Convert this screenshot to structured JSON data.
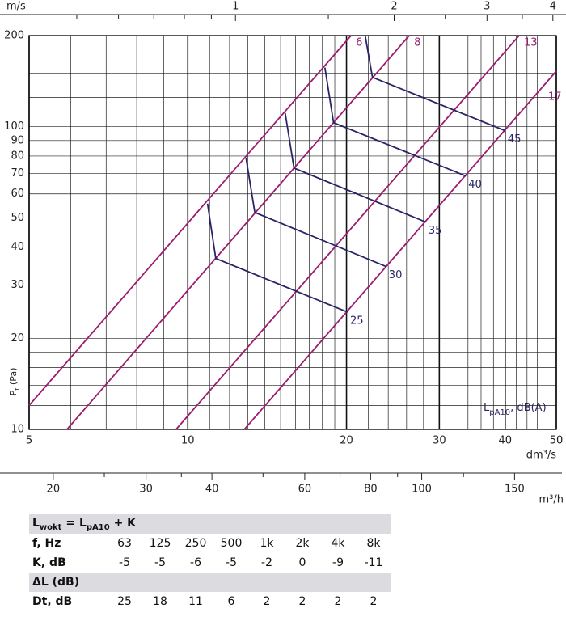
{
  "chart_data": {
    "type": "line",
    "log_x": true,
    "log_y": true,
    "grid": true,
    "x_label": "dm³/s",
    "y_label": {
      "main": "P",
      "sub": "t",
      "rest": " (Pa)"
    },
    "xlim": [
      5,
      50
    ],
    "xticks": [
      5,
      10,
      20,
      30,
      40,
      50
    ],
    "xminor": [
      6,
      7,
      8,
      9,
      11,
      12,
      13,
      14,
      15,
      16,
      17,
      18,
      19,
      22,
      24,
      26,
      28,
      32,
      34,
      36,
      38,
      42,
      44,
      46,
      48
    ],
    "ylim": [
      10,
      200
    ],
    "yticks": [
      10,
      20,
      30,
      40,
      50,
      60,
      70,
      80,
      90,
      100,
      200
    ],
    "yminor": [
      12,
      14,
      16,
      18,
      125,
      150,
      175
    ],
    "top_axis": {
      "label": "m/s",
      "lim": [
        0.406,
        4.06
      ],
      "ticks": [
        1,
        2,
        3,
        4
      ],
      "minor": [
        0.5,
        0.6,
        0.7,
        0.8,
        0.9,
        1.5,
        2.5,
        3.5
      ]
    },
    "bottom_axis": {
      "label": "m³/h",
      "lim": [
        18,
        180
      ],
      "ticks": [
        20,
        30,
        40,
        60,
        80,
        100,
        150
      ],
      "minor": [
        25,
        35,
        50,
        70,
        90,
        120
      ]
    },
    "series": [
      {
        "name": "6",
        "color": "#9b1b6d",
        "x": [
          5,
          20.4
        ],
        "values": [
          12,
          200
        ]
      },
      {
        "name": "8",
        "color": "#9b1b6d",
        "x": [
          5.9,
          26.3
        ],
        "values": [
          10,
          200
        ]
      },
      {
        "name": "13",
        "color": "#9b1b6d",
        "x": [
          9.5,
          42.5
        ],
        "values": [
          10,
          200
        ]
      },
      {
        "name": "17",
        "color": "#9b1b6d",
        "x": [
          12.8,
          50
        ],
        "values": [
          10,
          152.6
        ]
      },
      {
        "name": "25",
        "color": "#2a2466",
        "x": [
          10.9,
          11.3,
          20.1
        ],
        "values": [
          55.7,
          36.7,
          24.4
        ]
      },
      {
        "name": "30",
        "color": "#2a2466",
        "x": [
          12.9,
          13.4,
          23.8
        ],
        "values": [
          78.6,
          52.1,
          34.5
        ]
      },
      {
        "name": "35",
        "color": "#2a2466",
        "x": [
          15.3,
          15.9,
          28.3
        ],
        "values": [
          111,
          73,
          48.4
        ]
      },
      {
        "name": "40",
        "color": "#2a2466",
        "x": [
          18.2,
          18.9,
          33.7
        ],
        "values": [
          156.7,
          103.1,
          68.7
        ]
      },
      {
        "name": "45",
        "color": "#2a2466",
        "x": [
          21.7,
          22.4,
          40
        ],
        "values": [
          200,
          145.6,
          97
        ]
      }
    ],
    "legend_label": {
      "main": "L",
      "sub": "pA10",
      "rest": ", dB(A)"
    }
  },
  "table": {
    "header": {
      "a": "L",
      "a_sub": "wokt",
      "b": " = L",
      "b_sub": "pA10",
      "c": " + K"
    },
    "rows": [
      [
        "f, Hz",
        "63",
        "125",
        "250",
        "500",
        "1k",
        "2k",
        "4k",
        "8k"
      ],
      [
        "K, dB",
        "-5",
        "-5",
        "-6",
        "-5",
        "-2",
        "0",
        "-9",
        "-11"
      ]
    ],
    "subheader": "ΔL (dB)",
    "rows2": [
      [
        "Dt, dB",
        "25",
        "18",
        "11",
        "6",
        "2",
        "2",
        "2",
        "2"
      ]
    ]
  }
}
